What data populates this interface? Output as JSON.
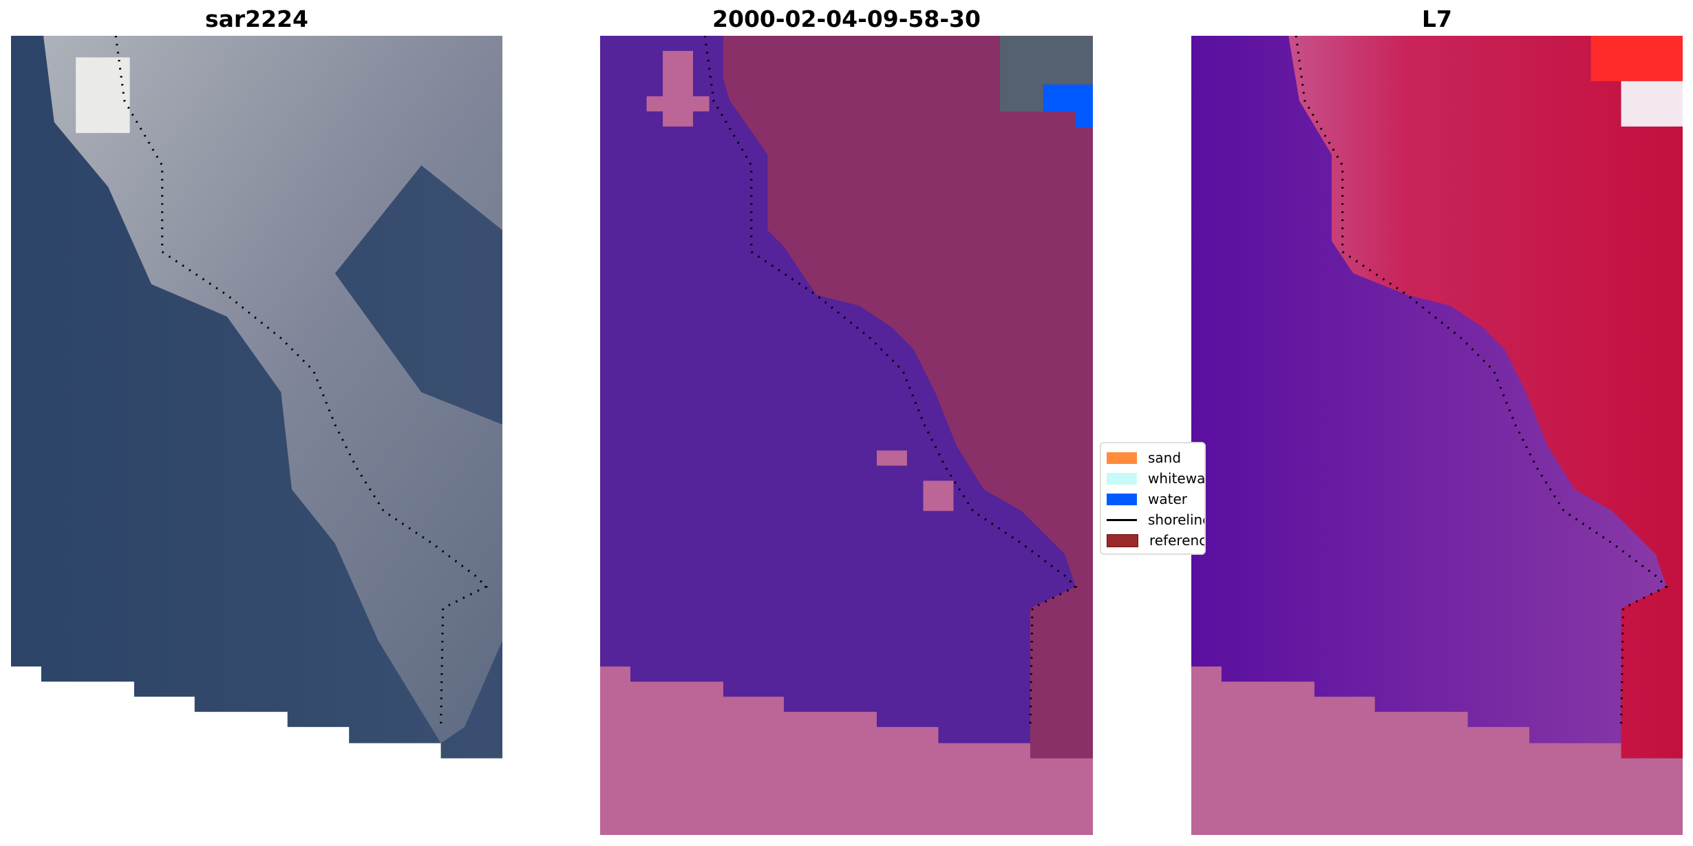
{
  "panels": [
    {
      "title": "sar2224"
    },
    {
      "title": "2000-02-04-09-58-30"
    },
    {
      "title": "L7"
    }
  ],
  "legend": {
    "items": [
      {
        "label": "sand",
        "color": "#ff8c3c",
        "kind": "patch"
      },
      {
        "label": "whitewater",
        "color": "#c8fafa",
        "kind": "patch"
      },
      {
        "label": "water",
        "color": "#005aff",
        "kind": "patch"
      },
      {
        "label": "shoreline",
        "color": "#000000",
        "kind": "line"
      },
      {
        "label": "reference shoreline",
        "color": "#9a2a2a",
        "kind": "patch"
      }
    ]
  },
  "colors": {
    "water_class": "#55239a",
    "land_overlay": "#8a3068",
    "nodata_overlay": "#bb6697",
    "rgb_water": "#2f466c",
    "ndwi_land": "#c8204f",
    "ndwi_water": "#6d1d9c"
  }
}
